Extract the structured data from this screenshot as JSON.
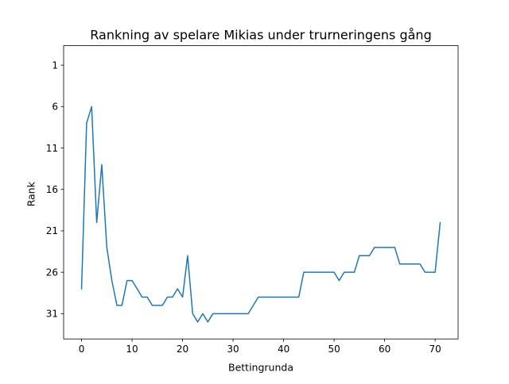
{
  "chart_data": {
    "type": "line",
    "title": "Rankning av spelare Mikias under trurneringens gång",
    "xlabel": "Bettingrunda",
    "ylabel": "Rank",
    "x_ticks": [
      0,
      10,
      20,
      30,
      40,
      50,
      60,
      70
    ],
    "y_ticks": [
      1,
      6,
      11,
      16,
      21,
      26,
      31
    ],
    "xlim": [
      -3.55,
      74.55
    ],
    "ylim": [
      34.05,
      -1.35
    ],
    "y_inverted": true,
    "grid": false,
    "line_color": "#1f77b4",
    "series": [
      {
        "x": [
          0,
          1,
          2,
          3,
          4,
          5,
          6,
          7,
          8,
          9,
          10,
          11,
          12,
          13,
          14,
          15,
          16,
          17,
          18,
          19,
          20,
          21,
          22,
          23,
          24,
          25,
          26,
          27,
          28,
          29,
          30,
          31,
          32,
          33,
          34,
          35,
          36,
          37,
          38,
          39,
          40,
          41,
          42,
          43,
          44,
          45,
          46,
          47,
          48,
          49,
          50,
          51,
          52,
          53,
          54,
          55,
          56,
          57,
          58,
          59,
          60,
          61,
          62,
          63,
          64,
          65,
          66,
          67,
          68,
          69,
          70,
          71
        ],
        "values": [
          28,
          8,
          6,
          20,
          13,
          23,
          27,
          30,
          30,
          27,
          27,
          28,
          29,
          29,
          30,
          30,
          30,
          29,
          29,
          28,
          29,
          24,
          31,
          32,
          31,
          32,
          31,
          31,
          31,
          31,
          31,
          31,
          31,
          31,
          30,
          29,
          29,
          29,
          29,
          29,
          29,
          29,
          29,
          29,
          26,
          26,
          26,
          26,
          26,
          26,
          26,
          27,
          26,
          26,
          26,
          24,
          24,
          24,
          23,
          23,
          23,
          23,
          23,
          25,
          25,
          25,
          25,
          25,
          26,
          26,
          26,
          20
        ]
      }
    ]
  }
}
